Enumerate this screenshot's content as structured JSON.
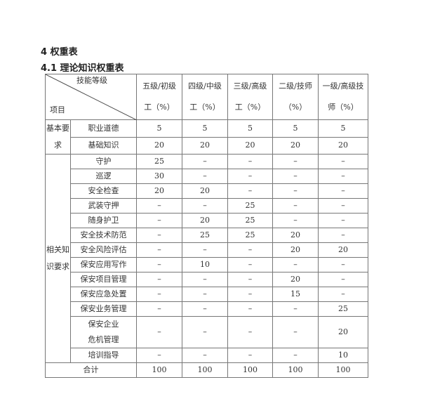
{
  "heading": "4 权重表",
  "subheading": "4.1 理论知识权重表",
  "table": {
    "corner_top": "技能等级",
    "corner_bottom": "项目",
    "columns": [
      "五级/初级工（%）",
      "四级/中级工（%）",
      "三级/高级工（%）",
      "二级/技师（%）",
      "一级/高级技师（%）"
    ],
    "groups": [
      {
        "name": "基本要求",
        "rows": [
          {
            "item": "职业道德",
            "values": [
              "5",
              "5",
              "5",
              "5",
              "5"
            ]
          },
          {
            "item": "基础知识",
            "values": [
              "20",
              "20",
              "20",
              "20",
              "20"
            ]
          }
        ]
      },
      {
        "name": "相关知识要求",
        "rows": [
          {
            "item": "守护",
            "values": [
              "25",
              "–",
              "–",
              "–",
              "–"
            ]
          },
          {
            "item": "巡逻",
            "values": [
              "30",
              "–",
              "–",
              "–",
              "–"
            ]
          },
          {
            "item": "安全检查",
            "values": [
              "20",
              "20",
              "–",
              "–",
              "–"
            ]
          },
          {
            "item": "武装守押",
            "values": [
              "–",
              "–",
              "25",
              "–",
              "–"
            ]
          },
          {
            "item": "随身护卫",
            "values": [
              "–",
              "20",
              "25",
              "–",
              "–"
            ]
          },
          {
            "item": "安全技术防范",
            "values": [
              "–",
              "25",
              "25",
              "20",
              "–"
            ]
          },
          {
            "item": "安全风险评估",
            "values": [
              "–",
              "–",
              "–",
              "20",
              "20"
            ]
          },
          {
            "item": "保安应用写作",
            "values": [
              "–",
              "10",
              "–",
              "–",
              "–"
            ]
          },
          {
            "item": "保安项目管理",
            "values": [
              "–",
              "–",
              "–",
              "20",
              "–"
            ]
          },
          {
            "item": "保安应急处置",
            "values": [
              "–",
              "–",
              "–",
              "15",
              "–"
            ]
          },
          {
            "item": "保安业务管理",
            "values": [
              "–",
              "–",
              "–",
              "–",
              "25"
            ]
          },
          {
            "item": "保安企业危机管理",
            "values": [
              "–",
              "–",
              "–",
              "–",
              "20"
            ]
          },
          {
            "item": "培训指导",
            "values": [
              "–",
              "–",
              "–",
              "–",
              "10"
            ]
          }
        ]
      }
    ],
    "total": {
      "label": "合计",
      "values": [
        "100",
        "100",
        "100",
        "100",
        "100"
      ]
    }
  }
}
